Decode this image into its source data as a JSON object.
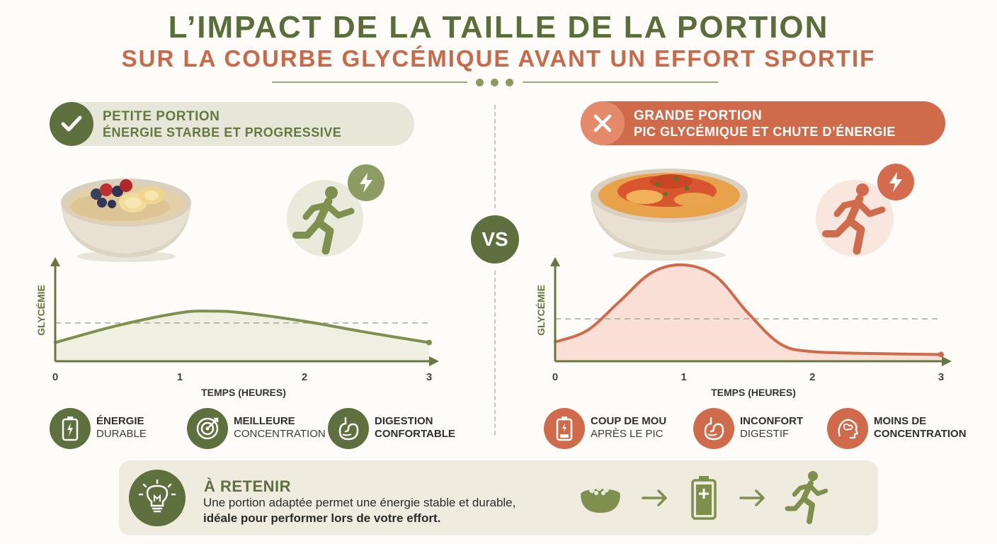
{
  "header": {
    "title": "L’IMPACT DE LA TAILLE DE LA PORTION",
    "subtitle": "SUR LA COURBE GLYCÉMIQUE AVANT UN EFFORT SPORTIF"
  },
  "vs_label": "VS",
  "left": {
    "banner_title": "PETITE PORTION",
    "banner_subtitle": "ÉNERGIE STARBE ET PROGRESSIVE",
    "features": [
      {
        "line1": "ÉNERGIE",
        "line2": "DURABLE",
        "icon": "battery-icon"
      },
      {
        "line1": "MEILLEURE",
        "line2": "CONCENTRATION",
        "icon": "target-icon"
      },
      {
        "line1": "DIGESTION",
        "line2": "CONFORTABLE",
        "icon": "stomach-icon"
      }
    ]
  },
  "right": {
    "banner_title": "GRANDE PORTION",
    "banner_subtitle": "PIC GLYCÉMIQUE ET CHUTE D’ÉNERGIE",
    "features": [
      {
        "line1": "COUP DE MOU",
        "line2": "APRÈS LE PIC",
        "icon": "low-battery-icon"
      },
      {
        "line1": "INCONFORT",
        "line2": "DIGESTIF",
        "icon": "stomach-icon"
      },
      {
        "line1": "MOINS DE",
        "line2": "CONCENTRATION",
        "icon": "brain-icon"
      }
    ]
  },
  "chart_data": [
    {
      "type": "area",
      "title": "",
      "xlabel": "TEMPS (HEURES)",
      "ylabel": "GLYCÉMIE",
      "xlim": [
        0,
        3
      ],
      "ylim": [
        0,
        1
      ],
      "x_ticks": [
        "0",
        "1",
        "2",
        "3"
      ],
      "x": [
        0,
        0.5,
        1,
        1.25,
        1.5,
        2,
        2.5,
        3
      ],
      "y": [
        0.22,
        0.42,
        0.57,
        0.59,
        0.57,
        0.47,
        0.34,
        0.22
      ],
      "reference_line": 0.45,
      "color": "#7f8f4e",
      "fill": "#efefe2",
      "grid": false
    },
    {
      "type": "area",
      "title": "",
      "xlabel": "TEMPS (HEURES)",
      "ylabel": "GLYCÉMIE",
      "xlim": [
        0,
        3
      ],
      "ylim": [
        0,
        1
      ],
      "x_ticks": [
        "0",
        "1",
        "2",
        "3"
      ],
      "x": [
        0,
        0.25,
        0.5,
        0.75,
        1,
        1.25,
        1.5,
        1.75,
        2,
        2.5,
        3
      ],
      "y": [
        0.2,
        0.32,
        0.62,
        0.92,
        1.0,
        0.88,
        0.5,
        0.18,
        0.1,
        0.08,
        0.07
      ],
      "reference_line": 0.44,
      "color": "#cf6b4a",
      "fill": "#f9dfd6",
      "grid": false
    }
  ],
  "retain": {
    "title": "À RETENIR",
    "line1": "Une portion adaptée permet une énergie stable et durable,",
    "line2": "idéale pour performer lors de votre effort."
  },
  "colors": {
    "green": "#5d703d",
    "orange": "#cf6b4a",
    "background": "#fdfcf8"
  }
}
